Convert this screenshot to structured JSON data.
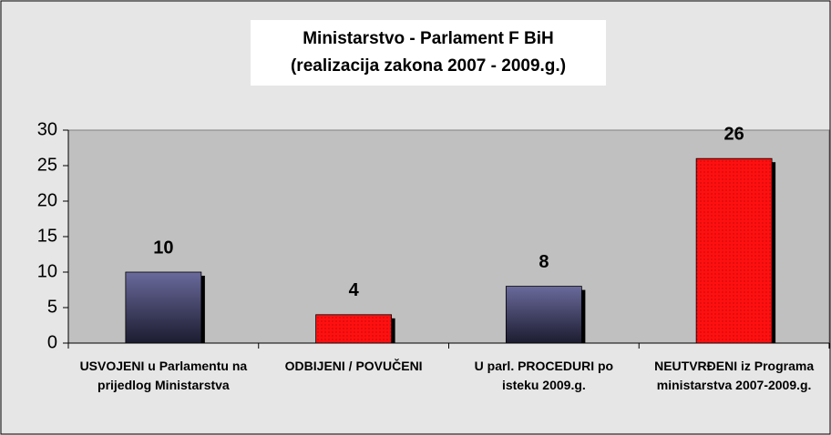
{
  "chart_data": {
    "type": "bar",
    "title": "Ministarstvo - Parlament F BiH",
    "subtitle": "(realizacija zakona 2007 - 2009.g.)",
    "categories": [
      "USVOJENI u Parlamentu na prijedlog Ministarstva",
      "ODBIJENI / POVUČENI",
      "U parl. PROCEDURI po isteku 2009.g.",
      "NEUTVRĐENI iz Programa ministarstva 2007-2009.g."
    ],
    "values": [
      10,
      4,
      8,
      26
    ],
    "colors": [
      "#5c5c8c",
      "#ff0000",
      "#5c5c8c",
      "#ff0000"
    ],
    "ylim": [
      0,
      30
    ],
    "yticks": [
      0,
      5,
      10,
      15,
      20,
      25,
      30
    ],
    "grid": false
  }
}
